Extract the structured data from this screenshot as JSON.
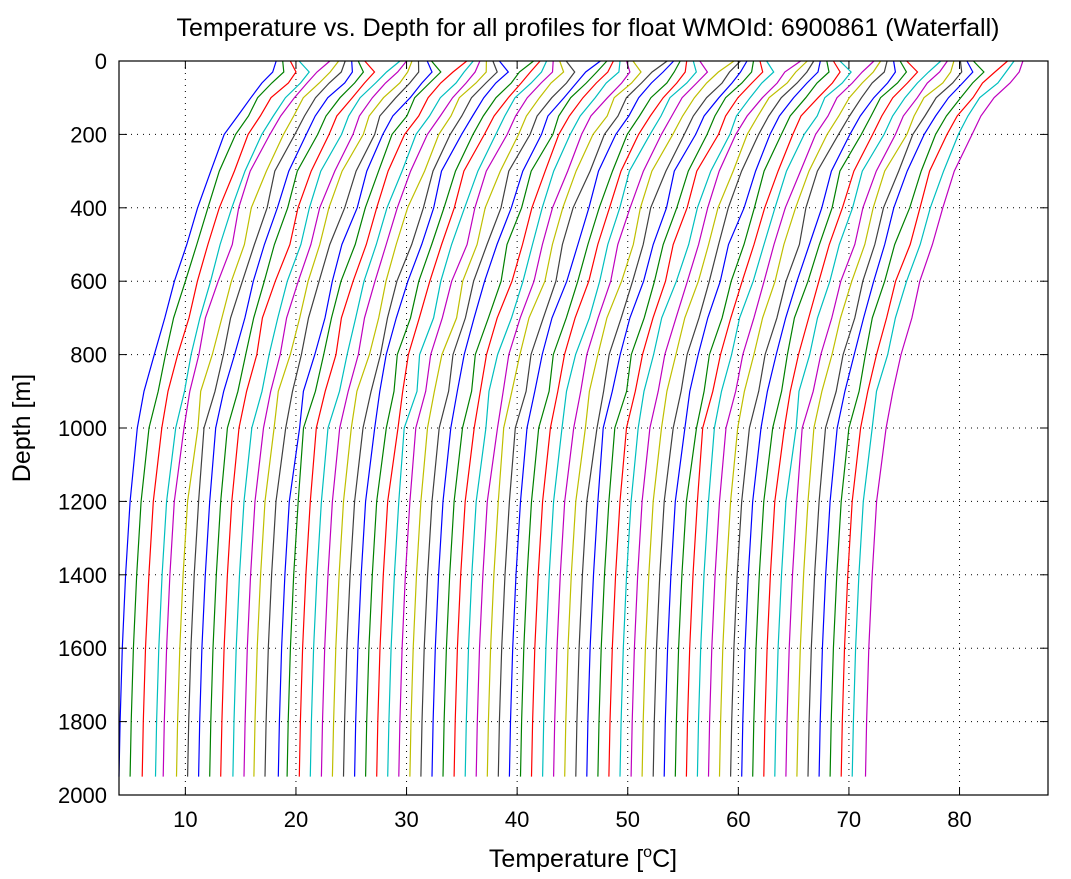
{
  "chart_data": {
    "type": "line",
    "title": "Temperature vs. Depth for all profiles for float WMOId: 6900861 (Waterfall)",
    "xlabel_prefix": "Temperature [",
    "xlabel_unit_sup": "o",
    "xlabel_suffix": "C]",
    "ylabel": "Depth [m]",
    "xlim": [
      4,
      88
    ],
    "ylim": [
      2000,
      0
    ],
    "y_reversed": true,
    "x_ticks": [
      10,
      20,
      30,
      40,
      50,
      60,
      70,
      80
    ],
    "y_ticks": [
      0,
      200,
      400,
      600,
      800,
      1000,
      1200,
      1400,
      1600,
      1800,
      2000
    ],
    "grid": true,
    "waterfall_offset_per_profile": 1,
    "series_colors": [
      "#0000ff",
      "#008000",
      "#ff0000",
      "#00bfbf",
      "#bf00bf",
      "#bfbf00",
      "#404040"
    ],
    "profile_shape": {
      "depth": [
        0,
        30,
        60,
        100,
        150,
        200,
        300,
        400,
        500,
        600,
        700,
        800,
        900,
        1000,
        1200,
        1400,
        1600,
        1800,
        1950
      ],
      "temperature": [
        18.0,
        17.8,
        16.9,
        15.6,
        14.5,
        13.6,
        12.0,
        10.9,
        9.9,
        8.9,
        7.9,
        7.0,
        6.3,
        5.6,
        4.9,
        4.5,
        4.2,
        4.0,
        3.9
      ]
    },
    "series": [
      {
        "base_temp": 4.0,
        "color": "#0000ff"
      },
      {
        "base_temp": 5.0,
        "color": "#008000"
      },
      {
        "base_temp": 6.1,
        "color": "#ff0000"
      },
      {
        "base_temp": 7.3,
        "color": "#00bfbf"
      },
      {
        "base_temp": 8.0,
        "color": "#bf00bf"
      },
      {
        "base_temp": 9.2,
        "color": "#bfbf00"
      },
      {
        "base_temp": 10.2,
        "color": "#404040"
      },
      {
        "base_temp": 11.2,
        "color": "#0000ff"
      },
      {
        "base_temp": 12.2,
        "color": "#008000"
      },
      {
        "base_temp": 13.2,
        "color": "#ff0000"
      },
      {
        "base_temp": 14.3,
        "color": "#00bfbf"
      },
      {
        "base_temp": 15.3,
        "color": "#bf00bf"
      },
      {
        "base_temp": 16.2,
        "color": "#bfbf00"
      },
      {
        "base_temp": 17.2,
        "color": "#404040"
      },
      {
        "base_temp": 18.4,
        "color": "#0000ff"
      },
      {
        "base_temp": 19.2,
        "color": "#008000"
      },
      {
        "base_temp": 20.3,
        "color": "#ff0000"
      },
      {
        "base_temp": 21.3,
        "color": "#00bfbf"
      },
      {
        "base_temp": 22.3,
        "color": "#bf00bf"
      },
      {
        "base_temp": 23.3,
        "color": "#bfbf00"
      },
      {
        "base_temp": 24.3,
        "color": "#404040"
      },
      {
        "base_temp": 25.3,
        "color": "#0000ff"
      },
      {
        "base_temp": 26.3,
        "color": "#008000"
      },
      {
        "base_temp": 27.3,
        "color": "#ff0000"
      },
      {
        "base_temp": 28.3,
        "color": "#00bfbf"
      },
      {
        "base_temp": 29.3,
        "color": "#bf00bf"
      },
      {
        "base_temp": 30.3,
        "color": "#bfbf00"
      },
      {
        "base_temp": 31.3,
        "color": "#404040"
      },
      {
        "base_temp": 32.3,
        "color": "#0000ff"
      },
      {
        "base_temp": 33.3,
        "color": "#008000"
      },
      {
        "base_temp": 34.3,
        "color": "#ff0000"
      },
      {
        "base_temp": 35.3,
        "color": "#00bfbf"
      },
      {
        "base_temp": 36.3,
        "color": "#bf00bf"
      },
      {
        "base_temp": 37.3,
        "color": "#bfbf00"
      },
      {
        "base_temp": 38.3,
        "color": "#404040"
      },
      {
        "base_temp": 39.3,
        "color": "#0000ff"
      },
      {
        "base_temp": 40.3,
        "color": "#008000"
      },
      {
        "base_temp": 41.3,
        "color": "#ff0000"
      },
      {
        "base_temp": 42.3,
        "color": "#00bfbf"
      },
      {
        "base_temp": 43.3,
        "color": "#bf00bf"
      },
      {
        "base_temp": 44.3,
        "color": "#bfbf00"
      },
      {
        "base_temp": 45.3,
        "color": "#404040"
      },
      {
        "base_temp": 46.3,
        "color": "#0000ff"
      },
      {
        "base_temp": 47.3,
        "color": "#008000"
      },
      {
        "base_temp": 48.3,
        "color": "#ff0000"
      },
      {
        "base_temp": 49.3,
        "color": "#00bfbf"
      },
      {
        "base_temp": 50.3,
        "color": "#bf00bf"
      },
      {
        "base_temp": 51.3,
        "color": "#bfbf00"
      },
      {
        "base_temp": 52.3,
        "color": "#404040"
      },
      {
        "base_temp": 53.3,
        "color": "#0000ff"
      },
      {
        "base_temp": 54.3,
        "color": "#008000"
      },
      {
        "base_temp": 55.3,
        "color": "#ff0000"
      },
      {
        "base_temp": 56.3,
        "color": "#00bfbf"
      },
      {
        "base_temp": 57.3,
        "color": "#bf00bf"
      },
      {
        "base_temp": 58.3,
        "color": "#bfbf00"
      },
      {
        "base_temp": 59.3,
        "color": "#404040"
      },
      {
        "base_temp": 60.3,
        "color": "#0000ff"
      },
      {
        "base_temp": 61.3,
        "color": "#008000"
      },
      {
        "base_temp": 62.3,
        "color": "#ff0000"
      },
      {
        "base_temp": 63.3,
        "color": "#00bfbf"
      },
      {
        "base_temp": 64.3,
        "color": "#bf00bf"
      },
      {
        "base_temp": 65.3,
        "color": "#bfbf00"
      },
      {
        "base_temp": 66.3,
        "color": "#404040"
      },
      {
        "base_temp": 67.3,
        "color": "#0000ff"
      },
      {
        "base_temp": 68.3,
        "color": "#008000"
      },
      {
        "base_temp": 69.3,
        "color": "#ff0000"
      },
      {
        "base_temp": 70.3,
        "color": "#00bfbf"
      },
      {
        "base_temp": 71.5,
        "color": "#bf00bf"
      }
    ]
  }
}
